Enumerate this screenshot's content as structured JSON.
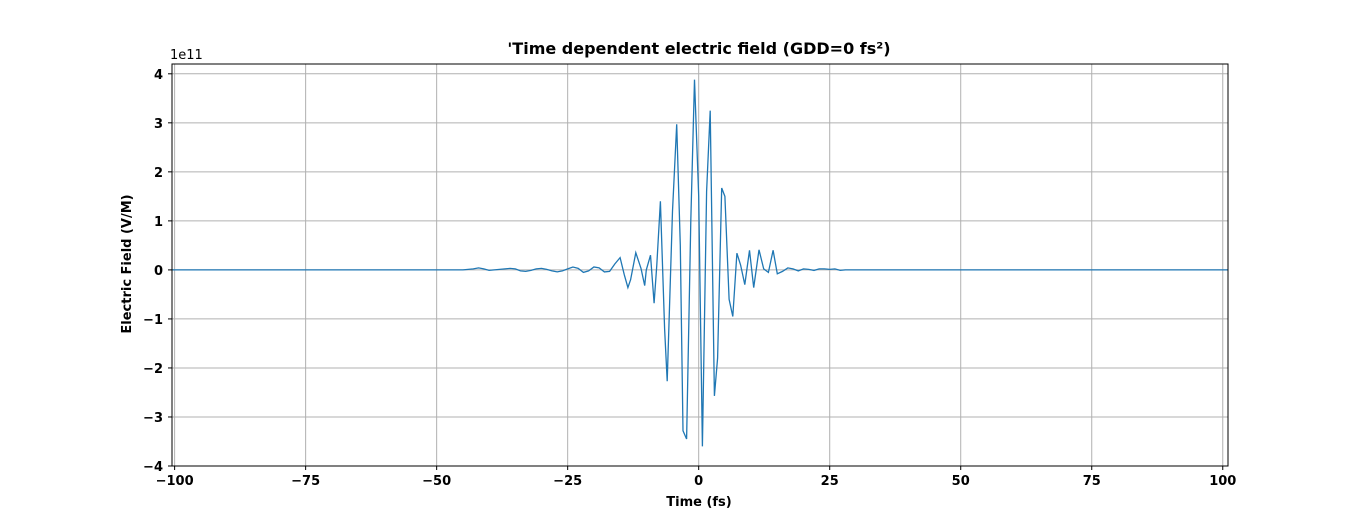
{
  "chart_data": {
    "type": "line",
    "title": "'Time dependent electric field (GDD=0 fs²)",
    "xlabel": "Time (fs)",
    "ylabel": "Electric Field (V/M)",
    "y_offset_label": "1e11",
    "y_multiplier": 100000000000.0,
    "xlim": [
      -100.5,
      101
    ],
    "ylim": [
      -4,
      4.2
    ],
    "x_ticks": [
      -100,
      -75,
      -50,
      -25,
      0,
      25,
      50,
      75,
      100
    ],
    "x_tick_labels": [
      "−100",
      "−75",
      "−50",
      "−25",
      "0",
      "25",
      "50",
      "75",
      "100"
    ],
    "y_ticks": [
      -4,
      -3,
      -2,
      -1,
      0,
      1,
      2,
      3,
      4
    ],
    "y_tick_labels": [
      "−4",
      "−3",
      "−2",
      "−1",
      "0",
      "1",
      "2",
      "3",
      "4"
    ],
    "grid": true,
    "color": "#1f77b4",
    "series": [
      {
        "x": [
          -100.5,
          -45,
          -43,
          -42,
          -41,
          -40,
          -38,
          -37,
          -36,
          -35,
          -34,
          -33,
          -32,
          -31,
          -30,
          -29,
          -28,
          -27,
          -26,
          -25,
          -24,
          -23,
          -22,
          -21,
          -20,
          -19,
          -18,
          -17,
          -16,
          -15,
          -14.2,
          -13.5,
          -13,
          -12,
          -11,
          -10.3,
          -10,
          -9.2,
          -8.5,
          -8,
          -7.3,
          -6.5,
          -6,
          -5,
          -4.2,
          -3.5,
          -3,
          -2.3,
          -1.5,
          -0.8,
          0,
          0.7,
          1.5,
          2.2,
          3,
          3.6,
          4.4,
          5,
          5.8,
          6.5,
          7.3,
          8,
          8.8,
          9.7,
          10.5,
          11.5,
          12.4,
          13.3,
          14.2,
          15,
          16,
          17,
          18,
          19,
          20,
          21,
          22,
          23,
          24,
          25,
          26,
          27,
          28,
          30,
          32,
          101
        ],
        "y": [
          0,
          0,
          0.02,
          0.04,
          0.02,
          -0.01,
          0.01,
          0.02,
          0.03,
          0.02,
          -0.02,
          -0.03,
          -0.01,
          0.02,
          0.03,
          0.01,
          -0.02,
          -0.04,
          -0.02,
          0.02,
          0.06,
          0.03,
          -0.05,
          -0.02,
          0.06,
          0.04,
          -0.04,
          -0.03,
          0.12,
          0.25,
          -0.1,
          -0.36,
          -0.2,
          0.35,
          0.03,
          -0.32,
          0.0,
          0.3,
          -0.68,
          0.1,
          1.4,
          -1.2,
          -2.27,
          1.2,
          2.97,
          0.5,
          -3.28,
          -3.45,
          1.0,
          3.88,
          1.5,
          -3.6,
          1.6,
          3.25,
          -2.57,
          -1.8,
          1.67,
          1.5,
          -0.6,
          -0.95,
          0.34,
          0.1,
          -0.3,
          0.4,
          -0.36,
          0.41,
          0.02,
          -0.05,
          0.4,
          -0.08,
          -0.03,
          0.04,
          0.02,
          -0.02,
          0.02,
          0.01,
          -0.01,
          0.02,
          0.02,
          0.01,
          0.02,
          -0.01,
          0.0,
          0.0,
          0.0,
          0
        ]
      }
    ]
  }
}
